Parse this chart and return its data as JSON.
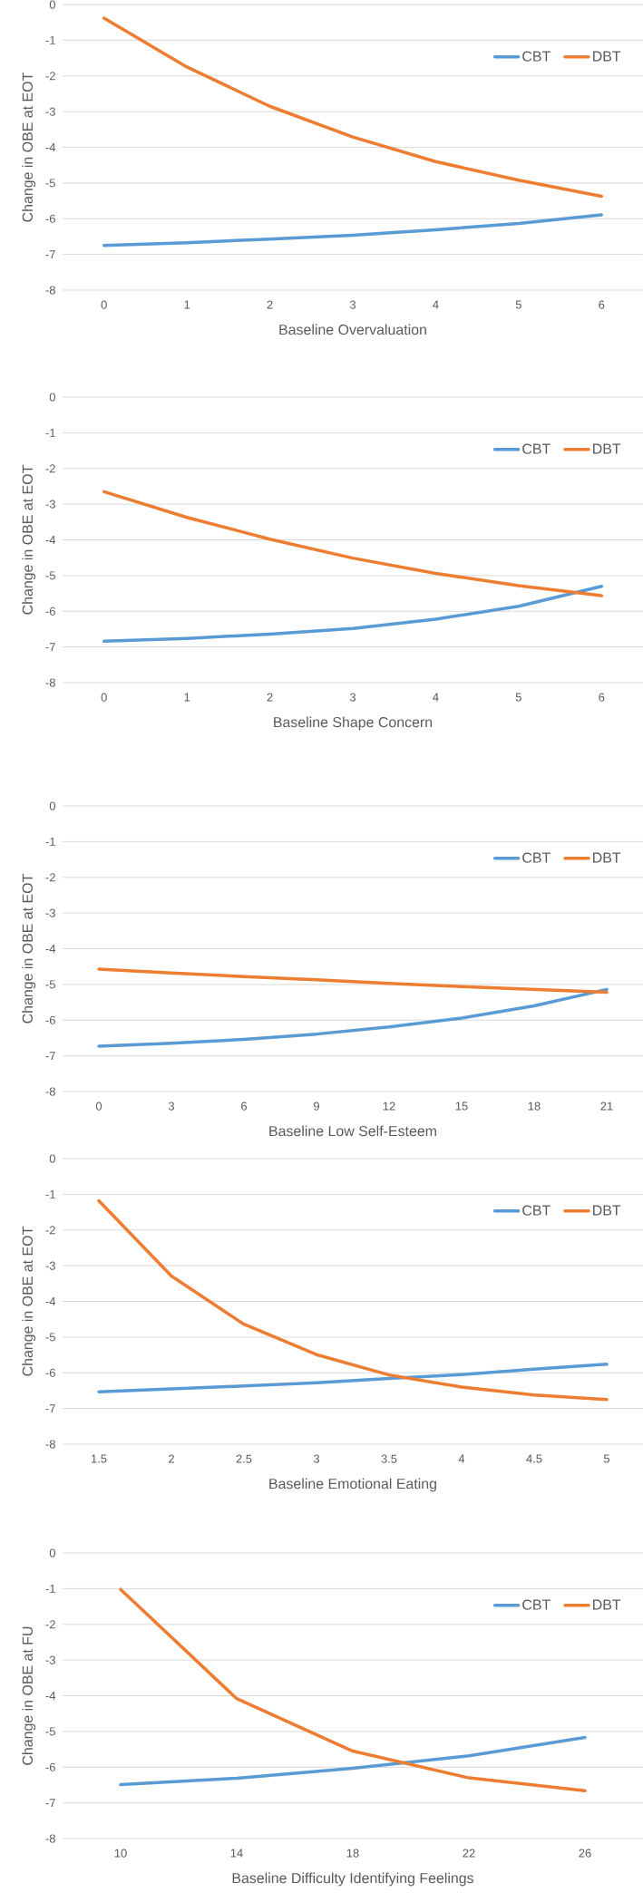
{
  "chart_data": [
    {
      "type": "line",
      "categories": [
        "0",
        "1",
        "2",
        "3",
        "4",
        "5",
        "6"
      ],
      "xlabel": "Baseline Overvaluation",
      "ylabel": "Change in OBE at EOT",
      "ylim": [
        -8,
        0
      ],
      "yticks": [
        -8,
        -7,
        -6,
        -5,
        -4,
        -3,
        -2,
        -1,
        0
      ],
      "grid": "y",
      "legend": "top right",
      "series": [
        {
          "name": "CBT",
          "color": "#5b9bd5",
          "values": [
            -6.75,
            -6.67,
            -6.57,
            -6.46,
            -6.31,
            -6.13,
            -5.89
          ]
        },
        {
          "name": "DBT",
          "color": "#ed7d31",
          "values": [
            -0.38,
            -1.75,
            -2.85,
            -3.71,
            -4.4,
            -4.92,
            -5.37
          ]
        }
      ]
    },
    {
      "type": "line",
      "categories": [
        "0",
        "1",
        "2",
        "3",
        "4",
        "5",
        "6"
      ],
      "xlabel": "Baseline Shape Concern",
      "ylabel": "Change in OBE at EOT",
      "ylim": [
        -8,
        0
      ],
      "yticks": [
        -8,
        -7,
        -6,
        -5,
        -4,
        -3,
        -2,
        -1,
        0
      ],
      "grid": "y",
      "legend": "top right",
      "series": [
        {
          "name": "CBT",
          "color": "#5b9bd5",
          "values": [
            -6.84,
            -6.76,
            -6.64,
            -6.48,
            -6.22,
            -5.86,
            -5.3
          ]
        },
        {
          "name": "DBT",
          "color": "#ed7d31",
          "values": [
            -2.65,
            -3.37,
            -3.98,
            -4.51,
            -4.94,
            -5.28,
            -5.56
          ]
        }
      ]
    },
    {
      "type": "line",
      "categories": [
        "0",
        "3",
        "6",
        "9",
        "12",
        "15",
        "18",
        "21"
      ],
      "xlabel": "Baseline Low Self-Esteem",
      "ylabel": "Change in OBE at EOT",
      "ylim": [
        -8,
        0
      ],
      "yticks": [
        -8,
        -7,
        -6,
        -5,
        -4,
        -3,
        -2,
        -1,
        0
      ],
      "grid": "y",
      "legend": "top right",
      "series": [
        {
          "name": "CBT",
          "color": "#5b9bd5",
          "values": [
            -6.73,
            -6.65,
            -6.54,
            -6.39,
            -6.19,
            -5.94,
            -5.6,
            -5.14
          ]
        },
        {
          "name": "DBT",
          "color": "#ed7d31",
          "values": [
            -4.57,
            -4.68,
            -4.78,
            -4.87,
            -4.97,
            -5.06,
            -5.14,
            -5.22
          ]
        }
      ]
    },
    {
      "type": "line",
      "categories": [
        "1.5",
        "2",
        "2.5",
        "3",
        "3.5",
        "4",
        "4.5",
        "5"
      ],
      "xlabel": "Baseline Emotional Eating",
      "ylabel": "Change in OBE at EOT",
      "ylim": [
        -8,
        0
      ],
      "yticks": [
        -8,
        -7,
        -6,
        -5,
        -4,
        -3,
        -2,
        -1,
        0
      ],
      "grid": "y",
      "legend": "top right",
      "series": [
        {
          "name": "CBT",
          "color": "#5b9bd5",
          "values": [
            -6.53,
            -6.45,
            -6.37,
            -6.28,
            -6.16,
            -6.05,
            -5.9,
            -5.76
          ]
        },
        {
          "name": "DBT",
          "color": "#ed7d31",
          "values": [
            -1.18,
            -3.29,
            -4.64,
            -5.49,
            -6.06,
            -6.4,
            -6.62,
            -6.75
          ]
        }
      ]
    },
    {
      "type": "line",
      "categories": [
        "10",
        "14",
        "18",
        "22",
        "26"
      ],
      "xlabel": "Baseline Difficulty Identifying Feelings",
      "ylabel": "Change in OBE at FU",
      "ylim": [
        -8,
        0
      ],
      "yticks": [
        -8,
        -7,
        -6,
        -5,
        -4,
        -3,
        -2,
        -1,
        0
      ],
      "grid": "y",
      "legend": "top right",
      "series": [
        {
          "name": "CBT",
          "color": "#5b9bd5",
          "values": [
            -6.49,
            -6.31,
            -6.03,
            -5.68,
            -5.17
          ]
        },
        {
          "name": "DBT",
          "color": "#ed7d31",
          "values": [
            -1.02,
            -4.08,
            -5.55,
            -6.3,
            -6.66
          ]
        }
      ]
    }
  ]
}
